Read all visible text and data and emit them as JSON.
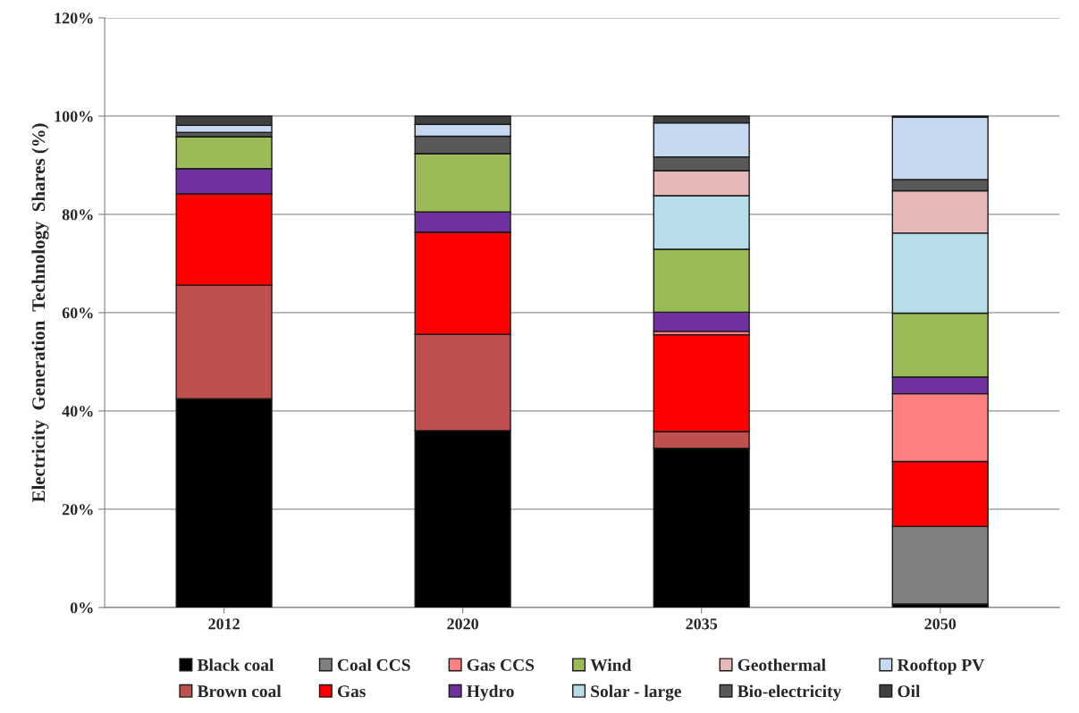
{
  "chart_data": {
    "type": "bar",
    "stacked": true,
    "ylabel": "Electricity  Generation  Technology  Shares (%)",
    "categories": [
      "2012",
      "2020",
      "2035",
      "2050"
    ],
    "series": [
      {
        "name": "Black coal",
        "color": "#000000",
        "values": [
          42.5,
          36.0,
          32.4,
          0.7
        ]
      },
      {
        "name": "Brown coal",
        "color": "#c0504d",
        "values": [
          23.1,
          19.6,
          3.4,
          0
        ]
      },
      {
        "name": "Coal CCS",
        "color": "#808080",
        "values": [
          0,
          0,
          0,
          15.8
        ]
      },
      {
        "name": "Gas",
        "color": "#ff0000",
        "values": [
          18.6,
          20.8,
          19.7,
          13.2
        ]
      },
      {
        "name": "Gas CCS",
        "color": "#ff8080",
        "values": [
          0,
          0,
          0.7,
          13.8
        ]
      },
      {
        "name": "Hydro",
        "color": "#7030a0",
        "values": [
          5.1,
          4.1,
          3.9,
          3.4
        ]
      },
      {
        "name": "Wind",
        "color": "#9bbb59",
        "values": [
          6.5,
          11.9,
          12.8,
          13.0
        ]
      },
      {
        "name": "Solar - large",
        "color": "#b7dde8",
        "values": [
          0,
          0,
          10.9,
          16.3
        ]
      },
      {
        "name": "Geothermal",
        "color": "#e6b9b8",
        "values": [
          0,
          0,
          5.1,
          8.6
        ]
      },
      {
        "name": "Bio-electricity",
        "color": "#595959",
        "values": [
          0.9,
          3.5,
          2.8,
          2.3
        ]
      },
      {
        "name": "Rooftop PV",
        "color": "#c6d9f0",
        "values": [
          1.4,
          2.4,
          6.9,
          12.7
        ]
      },
      {
        "name": "Oil",
        "color": "#404040",
        "values": [
          1.9,
          1.7,
          1.4,
          0.2
        ]
      }
    ],
    "ylim": [
      0,
      120
    ],
    "yticks": [
      {
        "value": 0,
        "label": "0%"
      },
      {
        "value": 20,
        "label": "20%"
      },
      {
        "value": 40,
        "label": "40%"
      },
      {
        "value": 60,
        "label": "60%"
      },
      {
        "value": 80,
        "label": "80%"
      },
      {
        "value": 100,
        "label": "100%"
      },
      {
        "value": 120,
        "label": "120%"
      }
    ],
    "grid": "y",
    "legend": "bottom"
  }
}
